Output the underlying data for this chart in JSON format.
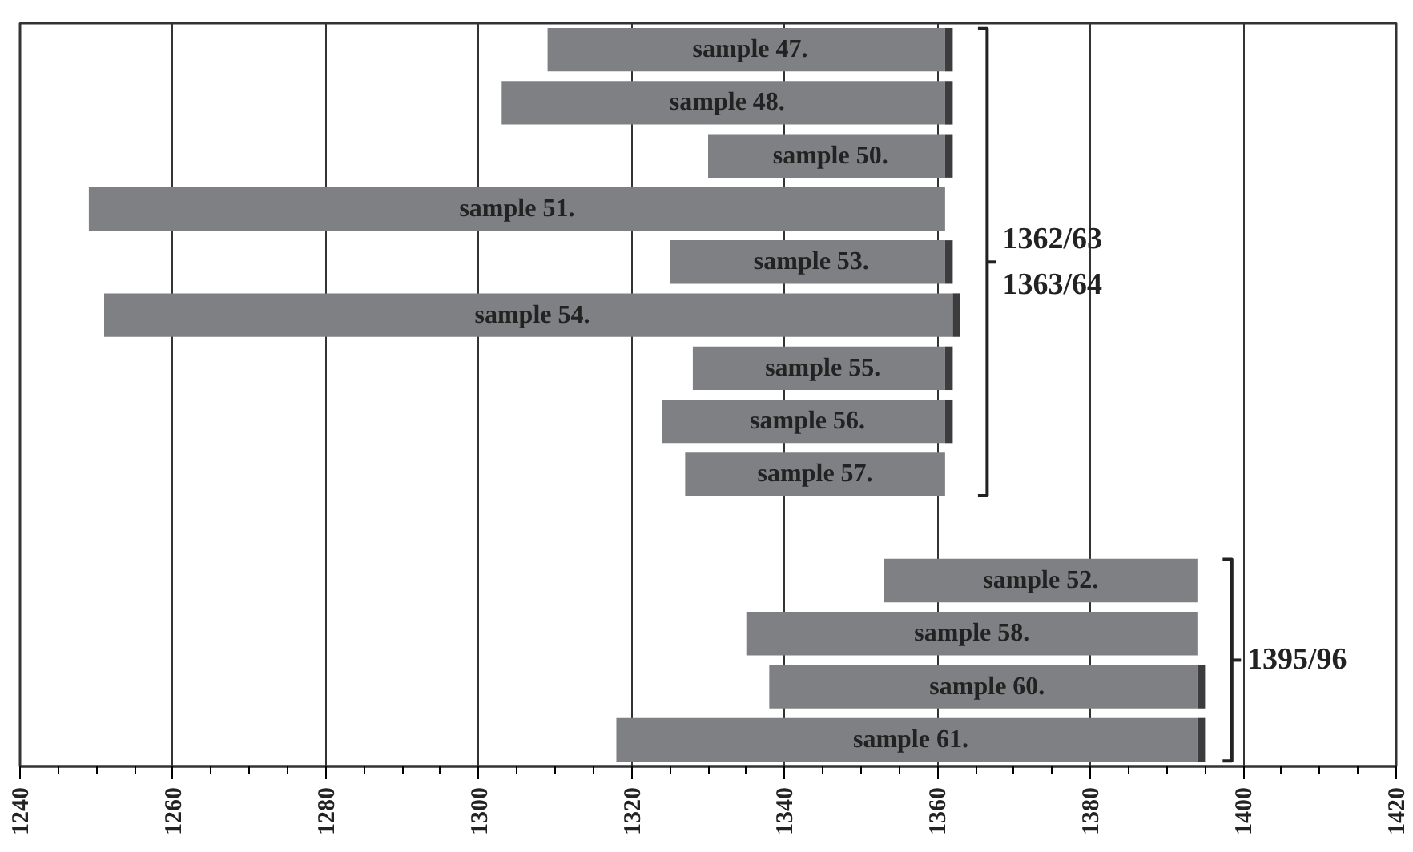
{
  "chart_data": {
    "type": "bar",
    "orientation": "horizontal",
    "categories": [
      "sample 47.",
      "sample 48.",
      "sample 50.",
      "sample 51.",
      "sample 53.",
      "sample 54.",
      "sample 55.",
      "sample 56.",
      "sample 57.",
      null,
      "sample 52.",
      "sample 58.",
      "sample 60.",
      "sample 61."
    ],
    "series": [
      {
        "color": "#7f8083",
        "base": [
          1309,
          1303,
          1330,
          1249,
          1325,
          1251,
          1328,
          1324,
          1327,
          null,
          1353,
          1335,
          1338,
          1318
        ],
        "values": [
          52,
          58,
          31,
          112,
          36,
          111,
          33,
          37,
          34,
          null,
          41,
          59,
          56,
          76
        ]
      },
      {
        "color": "#3c3c3e",
        "base": [
          1361,
          1361,
          1361,
          null,
          1361,
          1362,
          1361,
          1361,
          null,
          null,
          null,
          null,
          1394,
          1394
        ],
        "values": [
          1,
          1,
          1,
          null,
          1,
          1,
          1,
          1,
          null,
          null,
          null,
          null,
          1,
          1
        ]
      }
    ],
    "xlim": [
      1240,
      1420
    ],
    "xticks": [
      1240,
      1260,
      1280,
      1300,
      1320,
      1340,
      1360,
      1380,
      1400,
      1420
    ],
    "grid": "x",
    "annotations": [
      "1362/63\n1363/64",
      "1395/96"
    ]
  }
}
